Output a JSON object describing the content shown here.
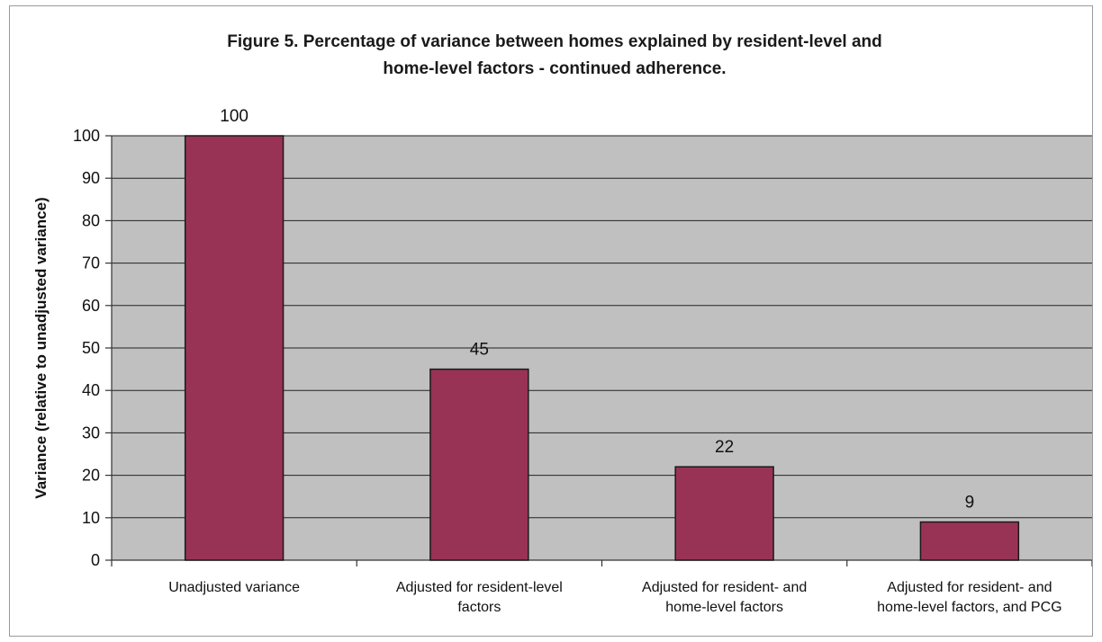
{
  "chart_data": {
    "type": "bar",
    "title": [
      "Figure 5. Percentage of variance between homes explained by resident-level and",
      "home-level factors - continued adherence."
    ],
    "ylabel": "Variance (relative to unadjusted variance)",
    "xlabel": "",
    "categories": [
      [
        "Unadjusted variance"
      ],
      [
        "Adjusted for resident-level",
        "factors"
      ],
      [
        "Adjusted for resident- and",
        "home-level factors"
      ],
      [
        "Adjusted for resident- and",
        "home-level factors, and PCG"
      ]
    ],
    "values": [
      100,
      45,
      22,
      9
    ],
    "data_labels": [
      "100",
      "45",
      "22",
      "9"
    ],
    "ylim": [
      0,
      100
    ],
    "yticks": [
      0,
      10,
      20,
      30,
      40,
      50,
      60,
      70,
      80,
      90,
      100
    ],
    "grid": true,
    "legend": "none",
    "colors": {
      "bar": "#993355",
      "bar_outline": "#1a1a1a",
      "plot_background": "#c0c0c0",
      "gridline": "#222222"
    }
  }
}
